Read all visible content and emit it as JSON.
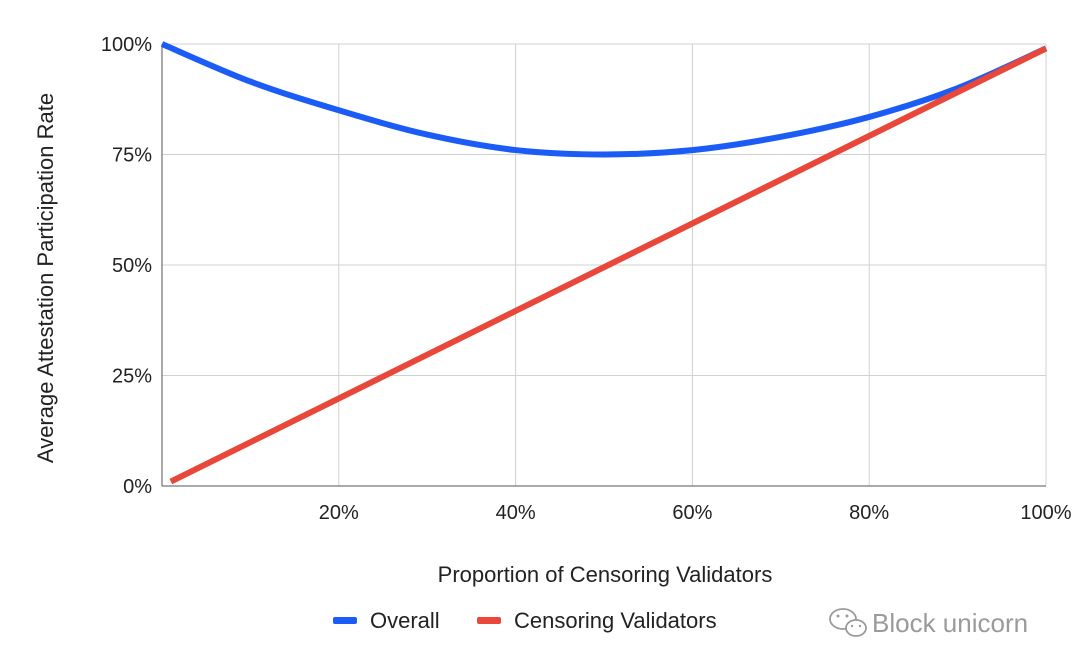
{
  "chart_data": {
    "type": "line",
    "title": "",
    "xlabel": "Proportion of Censoring Validators",
    "ylabel": "Average Attestation Participation Rate",
    "xlim": [
      0,
      100
    ],
    "ylim": [
      0,
      100
    ],
    "x_ticks": [
      {
        "value": 20,
        "label": "20%"
      },
      {
        "value": 40,
        "label": "40%"
      },
      {
        "value": 60,
        "label": "60%"
      },
      {
        "value": 80,
        "label": "80%"
      },
      {
        "value": 100,
        "label": "100%"
      }
    ],
    "y_ticks": [
      {
        "value": 0,
        "label": "0%"
      },
      {
        "value": 25,
        "label": "25%"
      },
      {
        "value": 50,
        "label": "50%"
      },
      {
        "value": 75,
        "label": "75%"
      },
      {
        "value": 100,
        "label": "100%"
      }
    ],
    "grid": true,
    "legend_position": "bottom",
    "series": [
      {
        "name": "Overall",
        "color": "#1a5cf5",
        "x": [
          0,
          10,
          20,
          30,
          40,
          50,
          60,
          70,
          80,
          90,
          100
        ],
        "values": [
          100,
          91.5,
          85,
          79.5,
          76,
          75,
          76,
          79,
          83.5,
          90,
          99
        ]
      },
      {
        "name": "Censoring Validators",
        "color": "#e8473a",
        "x": [
          1,
          100
        ],
        "values": [
          1,
          99
        ]
      }
    ]
  },
  "watermark": {
    "text": "Block unicorn",
    "icon": "wechat-icon"
  }
}
